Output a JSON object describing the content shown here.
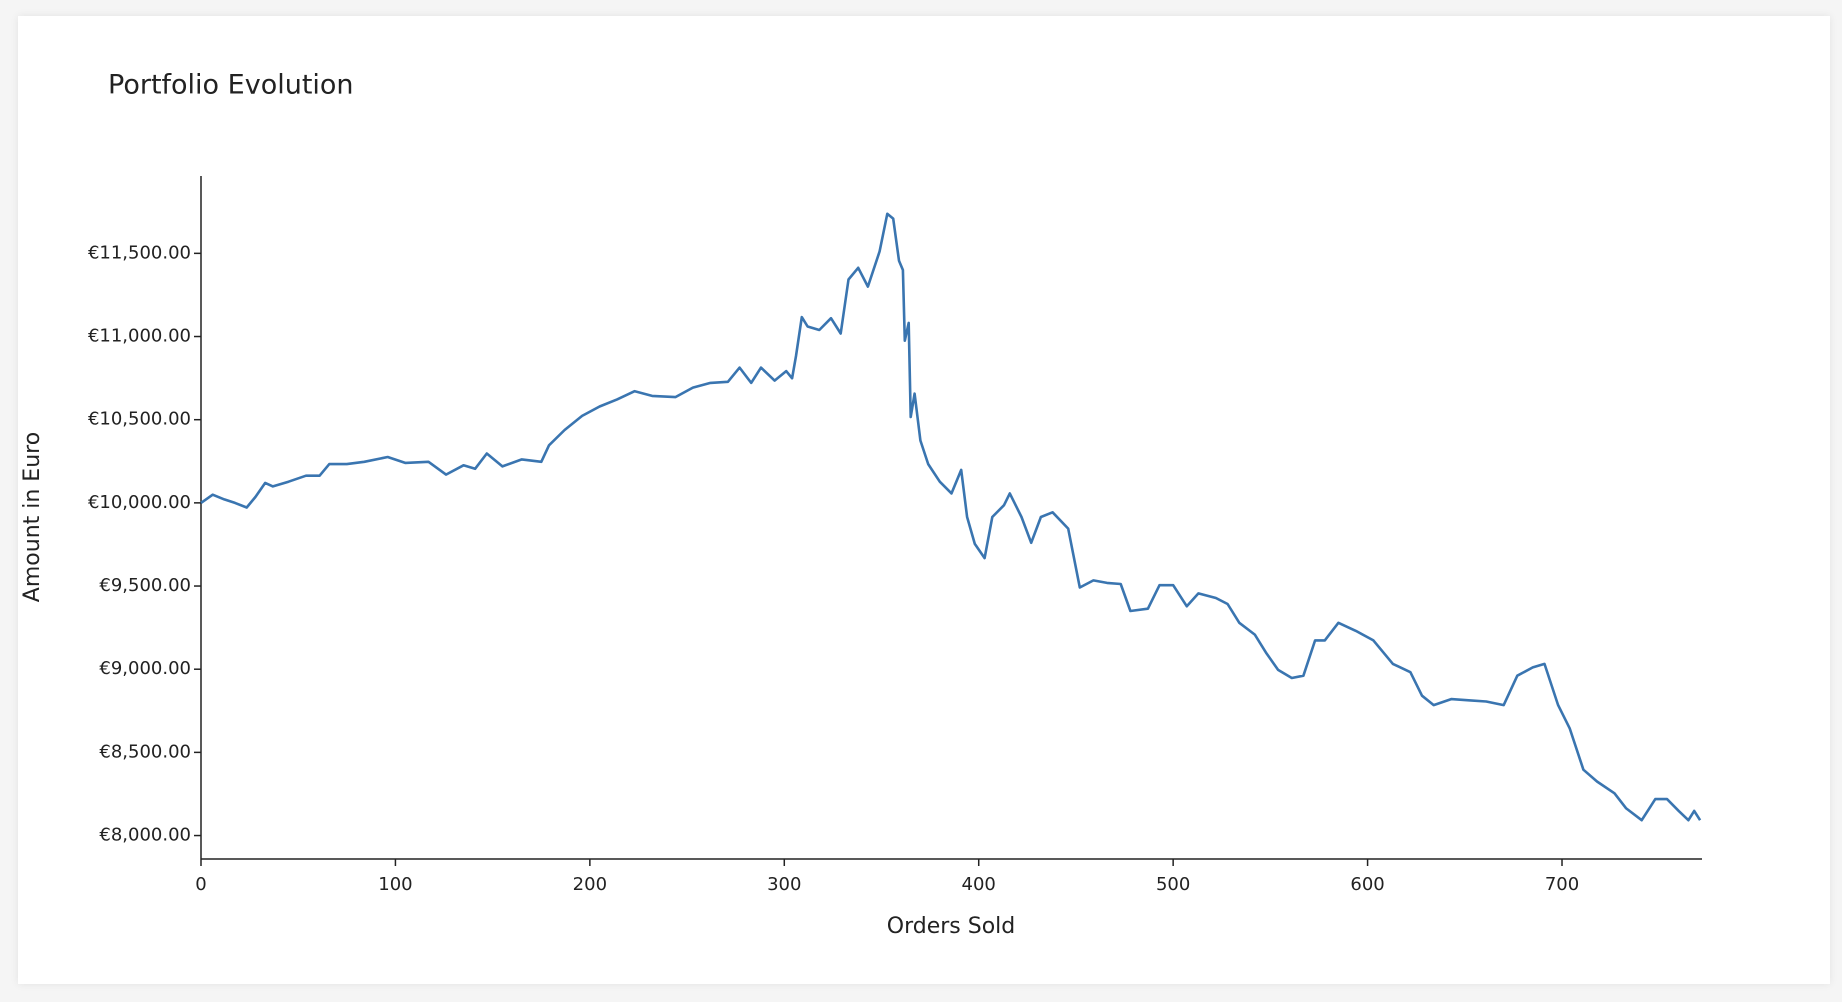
{
  "chart_data": {
    "type": "line",
    "title": "Portfolio Evolution",
    "x_label": "Orders Sold",
    "y_label": "Amount in Euro",
    "xlim": [
      0,
      772
    ],
    "ylim": [
      7859,
      11965
    ],
    "xticks": [
      0,
      100,
      200,
      300,
      400,
      500,
      600,
      700
    ],
    "yticks": [
      {
        "value": 8000,
        "label": "€8,000.00"
      },
      {
        "value": 8500,
        "label": "€8,500.00"
      },
      {
        "value": 9000,
        "label": "€9,000.00"
      },
      {
        "value": 9500,
        "label": "€9,500.00"
      },
      {
        "value": 10000,
        "label": "€10,000.00"
      },
      {
        "value": 10500,
        "label": "€10,500.00"
      },
      {
        "value": 11000,
        "label": "€11,000.00"
      },
      {
        "value": 11500,
        "label": "€11,500.00"
      }
    ],
    "grid": false,
    "series": [
      {
        "color": "#3a75b0",
        "x": [
          0,
          6,
          12,
          17.5,
          23.5,
          28,
          33,
          37,
          45,
          54,
          61,
          66,
          75,
          84,
          96,
          105,
          117,
          126,
          135,
          141,
          147,
          155,
          165,
          175,
          179,
          187,
          196,
          205,
          214,
          223,
          232,
          244,
          253,
          262,
          271,
          277,
          283,
          288,
          295,
          301,
          304,
          306,
          309,
          312,
          318,
          324,
          329,
          333,
          338,
          343,
          349,
          353,
          356,
          359,
          361,
          362,
          364,
          365,
          367,
          370,
          374,
          380,
          386,
          391,
          394,
          398,
          403,
          407,
          413,
          416,
          422,
          427,
          432,
          438,
          446,
          452,
          459,
          466,
          473,
          478,
          487,
          493,
          500,
          507,
          513,
          522,
          528,
          534,
          542,
          548,
          554,
          561,
          567,
          573,
          578,
          585,
          594,
          603,
          613,
          622,
          628,
          634,
          643,
          652,
          661,
          670,
          677,
          685,
          691,
          698,
          704,
          711,
          718,
          727,
          733,
          741,
          748,
          754,
          760,
          765,
          768,
          771
        ],
        "values": [
          10000,
          10049,
          10021,
          10000,
          9972,
          10035,
          10120,
          10099,
          10127,
          10163,
          10163,
          10233,
          10233,
          10247,
          10276,
          10240,
          10247,
          10170,
          10226,
          10205,
          10297,
          10219,
          10261,
          10247,
          10346,
          10438,
          10523,
          10579,
          10622,
          10671,
          10643,
          10636,
          10693,
          10721,
          10728,
          10813,
          10721,
          10813,
          10735,
          10792,
          10749,
          10883,
          11117,
          11060,
          11039,
          11110,
          11018,
          11343,
          11413,
          11300,
          11512,
          11738,
          11709,
          11456,
          11400,
          10975,
          11082,
          10516,
          10657,
          10375,
          10233,
          10127,
          10057,
          10198,
          9915,
          9753,
          9668,
          9915,
          9986,
          10057,
          9915,
          9760,
          9915,
          9943,
          9845,
          9491,
          9534,
          9519,
          9512,
          9350,
          9364,
          9505,
          9505,
          9378,
          9456,
          9428,
          9392,
          9279,
          9208,
          9095,
          8996,
          8947,
          8961,
          9173,
          9173,
          9279,
          9230,
          9173,
          9032,
          8982,
          8841,
          8784,
          8820,
          8813,
          8806,
          8784,
          8961,
          9011,
          9032,
          8784,
          8643,
          8396,
          8325,
          8254,
          8163,
          8092,
          8219,
          8219,
          8148,
          8092,
          8148,
          8092
        ]
      }
    ]
  }
}
